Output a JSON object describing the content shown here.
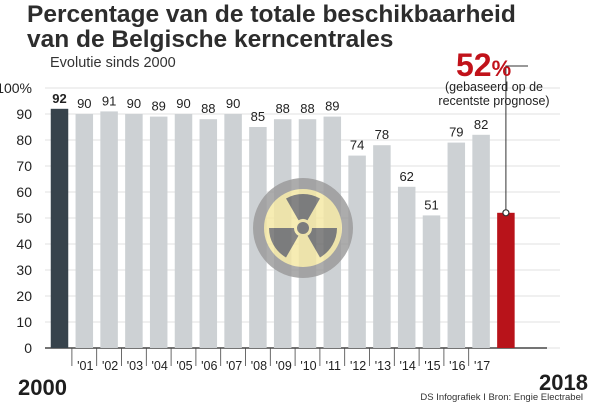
{
  "title_line1": "Percentage van de totale beschikbaarheid",
  "title_line2": "van de Belgische kerncentrales",
  "subtitle": "Evolutie sinds 2000",
  "year_start": "2000",
  "year_end": "2018",
  "source": "DS Infografiek I Bron: Engie Electrabel",
  "annotation": {
    "value": "52",
    "unit": "%",
    "note_line1": "(gebaseerd op de",
    "note_line2": "recentste prognose)"
  },
  "colors": {
    "bar": "#cdd1d4",
    "first_bar": "#37434c",
    "last_bar": "#b8131a",
    "accent": "#c1121a",
    "symbol_ring": "#9a9a9a",
    "symbol_fill": "#f5e8a3",
    "symbol_blade": "#6a6a6a"
  },
  "icon": "radiation-symbol-icon",
  "chart_data": {
    "type": "bar",
    "title": "Percentage van de totale beschikbaarheid van de Belgische kerncentrales",
    "subtitle": "Evolutie sinds 2000",
    "categories": [
      "2000",
      "2001",
      "2002",
      "2003",
      "2004",
      "2005",
      "2006",
      "2007",
      "2008",
      "2009",
      "2010",
      "2011",
      "2012",
      "2013",
      "2014",
      "2015",
      "2016",
      "2017",
      "2018"
    ],
    "x_tick_labels": [
      "",
      "'01",
      "'02",
      "'03",
      "'04",
      "'05",
      "'06",
      "'07",
      "'08",
      "'09",
      "'10",
      "'11",
      "'12",
      "'13",
      "'14",
      "'15",
      "'16",
      "'17",
      ""
    ],
    "values": [
      92,
      90,
      91,
      90,
      89,
      90,
      88,
      90,
      85,
      88,
      88,
      89,
      74,
      78,
      62,
      51,
      79,
      82,
      52
    ],
    "value_labels": [
      "92",
      "90",
      "91",
      "90",
      "89",
      "90",
      "88",
      "90",
      "85",
      "88",
      "88",
      "89",
      "74",
      "78",
      "62",
      "51",
      "79",
      "82",
      ""
    ],
    "y_ticks": [
      "0",
      "10",
      "20",
      "30",
      "40",
      "50",
      "60",
      "70",
      "80",
      "90",
      "100%"
    ],
    "ylim": [
      0,
      100
    ],
    "grid": true,
    "legend": "none"
  }
}
